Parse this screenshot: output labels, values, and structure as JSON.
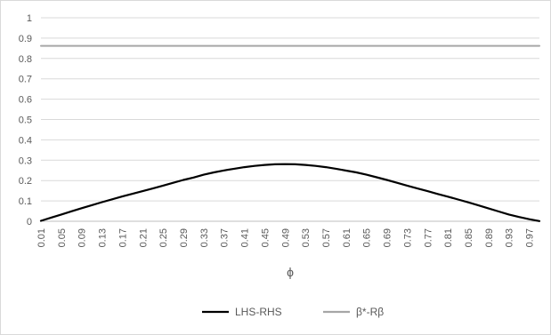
{
  "chart_data": {
    "type": "line",
    "xlabel": "ϕ",
    "ylabel": "",
    "title": "",
    "ylim": [
      0,
      1
    ],
    "yticks": [
      "0",
      "0.1",
      "0.2",
      "0.3",
      "0.4",
      "0.5",
      "0.6",
      "0.7",
      "0.8",
      "0.9",
      "1"
    ],
    "x_tick_labels": [
      "0.01",
      "0.05",
      "0.09",
      "0.13",
      "0.17",
      "0.21",
      "0.25",
      "0.29",
      "0.33",
      "0.37",
      "0.41",
      "0.45",
      "0.49",
      "0.53",
      "0.57",
      "0.61",
      "0.65",
      "0.69",
      "0.73",
      "0.77",
      "0.81",
      "0.85",
      "0.89",
      "0.93",
      "0.97"
    ],
    "x": [
      0.01,
      0.03,
      0.05,
      0.07,
      0.09,
      0.11,
      0.13,
      0.15,
      0.17,
      0.19,
      0.21,
      0.23,
      0.25,
      0.27,
      0.29,
      0.31,
      0.33,
      0.35,
      0.37,
      0.39,
      0.41,
      0.43,
      0.45,
      0.47,
      0.49,
      0.51,
      0.53,
      0.55,
      0.57,
      0.59,
      0.61,
      0.63,
      0.65,
      0.67,
      0.69,
      0.71,
      0.73,
      0.75,
      0.77,
      0.79,
      0.81,
      0.83,
      0.85,
      0.87,
      0.89,
      0.91,
      0.93,
      0.95,
      0.97,
      0.99
    ],
    "series": [
      {
        "name": "LHS-RHS",
        "color": "#000000",
        "values": [
          0.002,
          0.018,
          0.033,
          0.049,
          0.064,
          0.079,
          0.094,
          0.108,
          0.122,
          0.135,
          0.148,
          0.161,
          0.175,
          0.189,
          0.203,
          0.215,
          0.229,
          0.24,
          0.25,
          0.258,
          0.266,
          0.272,
          0.277,
          0.28,
          0.281,
          0.28,
          0.277,
          0.272,
          0.266,
          0.258,
          0.249,
          0.24,
          0.229,
          0.216,
          0.203,
          0.189,
          0.175,
          0.161,
          0.148,
          0.134,
          0.121,
          0.107,
          0.093,
          0.078,
          0.063,
          0.048,
          0.033,
          0.021,
          0.01,
          0.001
        ]
      },
      {
        "name": "β*-Rβ",
        "color": "#a6a6a6",
        "values": [
          0.862,
          0.862,
          0.862,
          0.862,
          0.862,
          0.862,
          0.862,
          0.862,
          0.862,
          0.862,
          0.862,
          0.862,
          0.862,
          0.862,
          0.862,
          0.862,
          0.862,
          0.862,
          0.862,
          0.862,
          0.862,
          0.862,
          0.862,
          0.862,
          0.862,
          0.862,
          0.862,
          0.862,
          0.862,
          0.862,
          0.862,
          0.862,
          0.862,
          0.862,
          0.862,
          0.862,
          0.862,
          0.862,
          0.862,
          0.862,
          0.862,
          0.862,
          0.862,
          0.862,
          0.862,
          0.862,
          0.862,
          0.862,
          0.862,
          0.862
        ]
      }
    ],
    "grid": true,
    "gridline_color": "#d9d9d9",
    "legend_position": "bottom"
  }
}
